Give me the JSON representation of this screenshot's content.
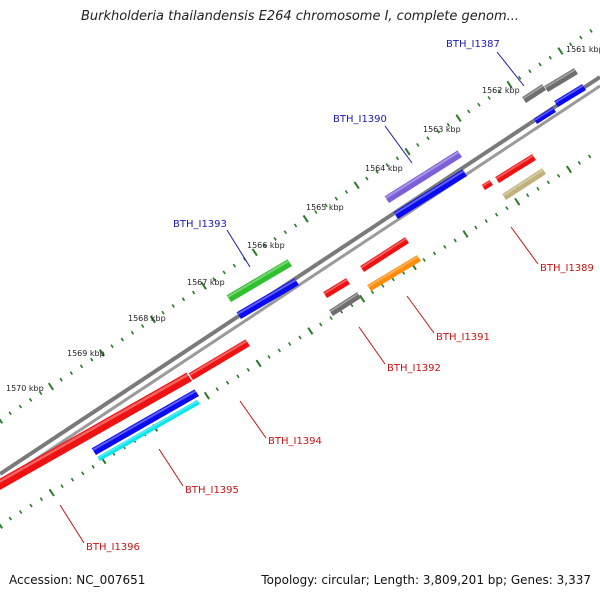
{
  "title": "Burkholderia thailandensis E264 chromosome I, complete genom...",
  "footer": {
    "accession": "Accession: NC_007651",
    "topology": "Topology: circular; Length: 3,809,201 bp; Genes: 3,337"
  },
  "colors": {
    "backbone": "#808080",
    "tick": "#2a7a2a",
    "forward_label": "#1a1ab8",
    "reverse_label": "#cc1111"
  },
  "scale_labels": [
    "1561 kbp",
    "1562 kbp",
    "1563 kbp",
    "1564 kbp",
    "1565 kbp",
    "1566 kbp",
    "1567 kbp",
    "1568 kbp",
    "1569 kbp",
    "1570 kbp"
  ],
  "gene_labels": [
    {
      "text": "BTH_I1387",
      "strand": "forward"
    },
    {
      "text": "BTH_I1390",
      "strand": "forward"
    },
    {
      "text": "BTH_I1393",
      "strand": "forward"
    },
    {
      "text": "BTH_I1389",
      "strand": "reverse"
    },
    {
      "text": "BTH_I1391",
      "strand": "reverse"
    },
    {
      "text": "BTH_I1392",
      "strand": "reverse"
    },
    {
      "text": "BTH_I1394",
      "strand": "reverse"
    },
    {
      "text": "BTH_I1395",
      "strand": "reverse"
    },
    {
      "text": "BTH_I1396",
      "strand": "reverse"
    }
  ],
  "features": [
    {
      "name": "gene-BTH_I1387",
      "color": "#6e6e6e"
    },
    {
      "name": "cds-BTH_I1387",
      "color": "#0b0bef"
    },
    {
      "name": "gene-BTH_I1388",
      "color": "#6e6e6e"
    },
    {
      "name": "cds-BTH_I1388",
      "color": "#0b0bef"
    },
    {
      "name": "gene-BTH_I1390",
      "color": "#7a5fd8"
    },
    {
      "name": "cds-BTH_I1390",
      "color": "#0b0bef"
    },
    {
      "name": "gene-BTH_I1393",
      "color": "#2fbf2f"
    },
    {
      "name": "cds-BTH_I1393",
      "color": "#0b0bef"
    },
    {
      "name": "gene-BTH_I1389",
      "color": "#ef1212"
    },
    {
      "name": "cds-BTH_I1389",
      "color": "#bfb27a"
    },
    {
      "name": "small-BTH_I1389",
      "color": "#ef1212"
    },
    {
      "name": "gene-BTH_I1391",
      "color": "#ef1212"
    },
    {
      "name": "cds-BTH_I1391",
      "color": "#ff8c0a"
    },
    {
      "name": "gene-BTH_I1392",
      "color": "#ef1212"
    },
    {
      "name": "cds-BTH_I1392",
      "color": "#6e6e6e"
    },
    {
      "name": "gene-BTH_I1394",
      "color": "#ef1212"
    },
    {
      "name": "gene-BTH_I1395",
      "color": "#0b0bef"
    },
    {
      "name": "cds-BTH_I1395",
      "color": "#12e4ef"
    },
    {
      "name": "gene-BTH_I1396",
      "color": "#ef1212"
    }
  ]
}
